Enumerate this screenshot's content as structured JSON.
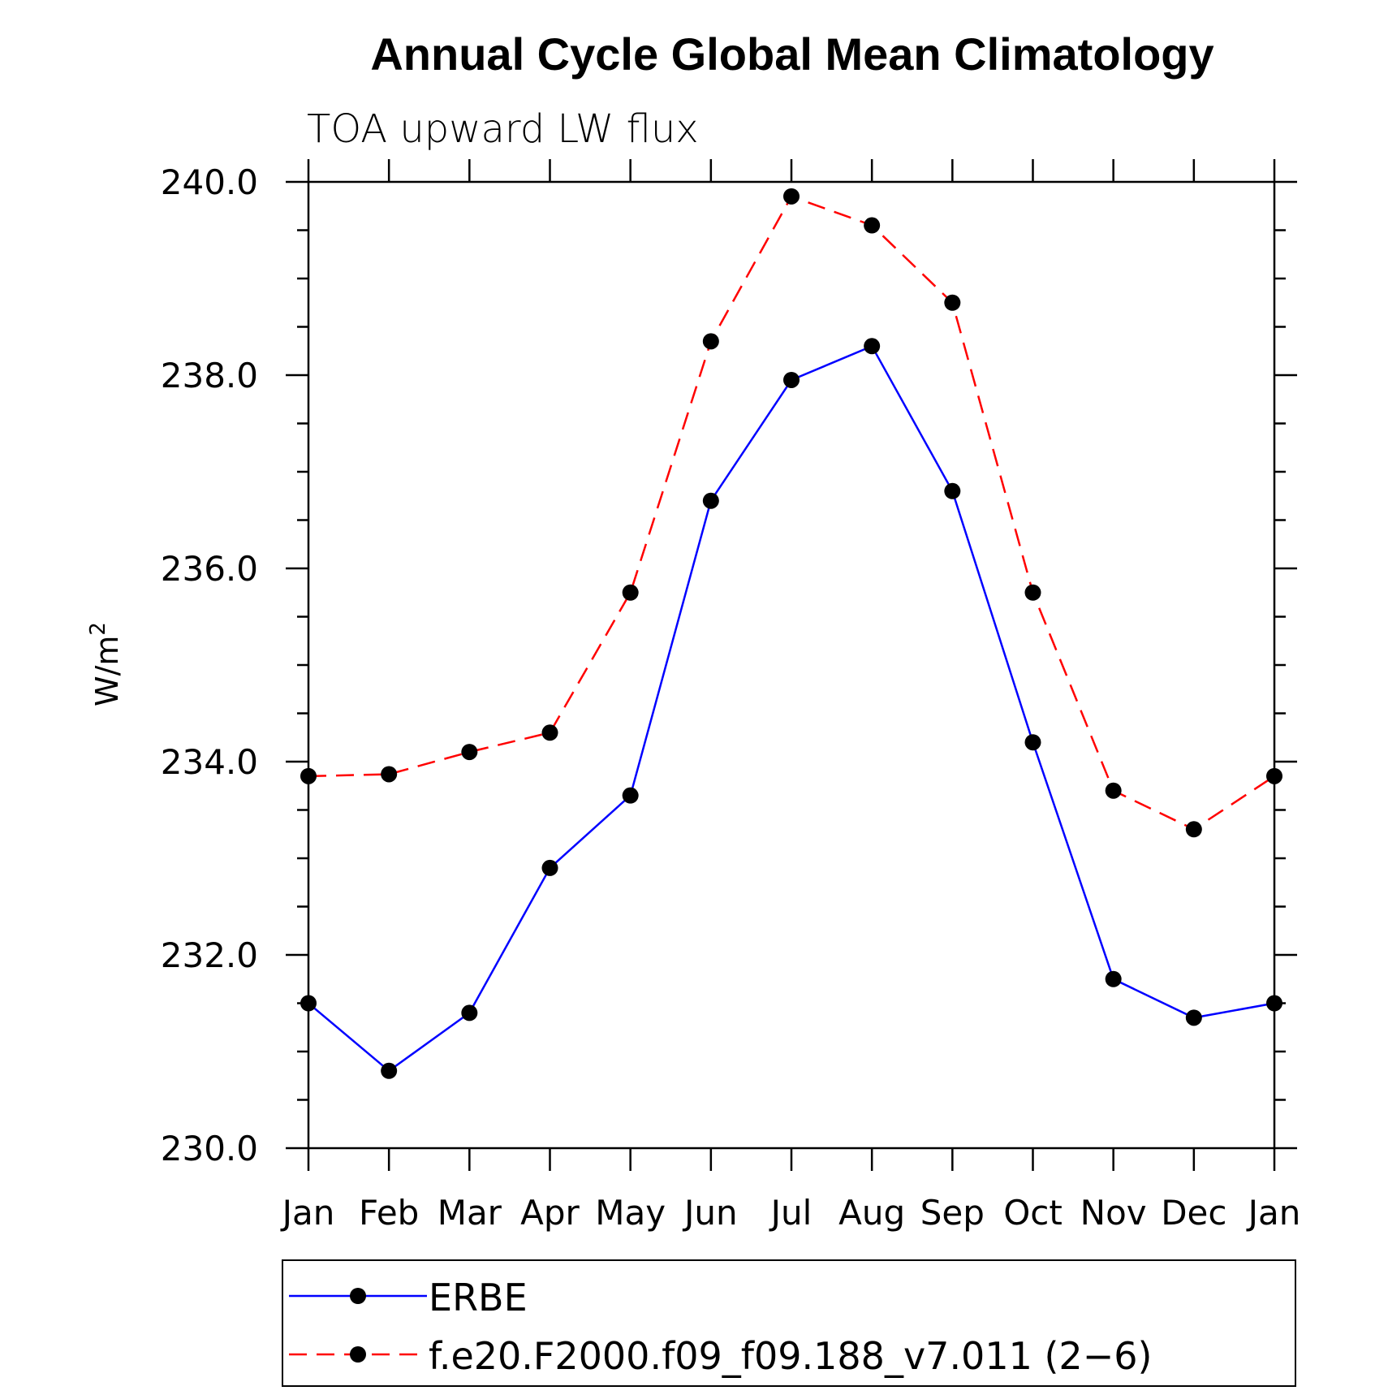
{
  "chart_data": {
    "type": "line",
    "title": "Annual Cycle Global Mean Climatology",
    "subtitle": "TOA upward LW flux",
    "ylabel_base": "W/m",
    "ylabel_sup": "2",
    "xlabel": "",
    "categories": [
      "Jan",
      "Feb",
      "Mar",
      "Apr",
      "May",
      "Jun",
      "Jul",
      "Aug",
      "Sep",
      "Oct",
      "Nov",
      "Dec",
      "Jan"
    ],
    "yticks": [
      "230.0",
      "232.0",
      "234.0",
      "236.0",
      "238.0",
      "240.0"
    ],
    "ylim": [
      230,
      240
    ],
    "grid": false,
    "legend_position": "bottom",
    "series": [
      {
        "name": "ERBE",
        "color": "#0000ff",
        "line_style": "solid",
        "marker": "filled-circle",
        "values": [
          231.5,
          230.8,
          231.4,
          232.9,
          233.65,
          236.7,
          237.95,
          238.3,
          236.8,
          234.2,
          231.75,
          231.35,
          231.5
        ]
      },
      {
        "name": "f.e20.F2000.f09_f09.188_v7.011 (2−6)",
        "color": "#ff0000",
        "line_style": "dashed",
        "marker": "filled-circle",
        "values": [
          233.85,
          233.87,
          234.1,
          234.3,
          235.75,
          238.35,
          239.85,
          239.55,
          238.75,
          235.75,
          233.7,
          233.3,
          233.85
        ]
      }
    ]
  }
}
